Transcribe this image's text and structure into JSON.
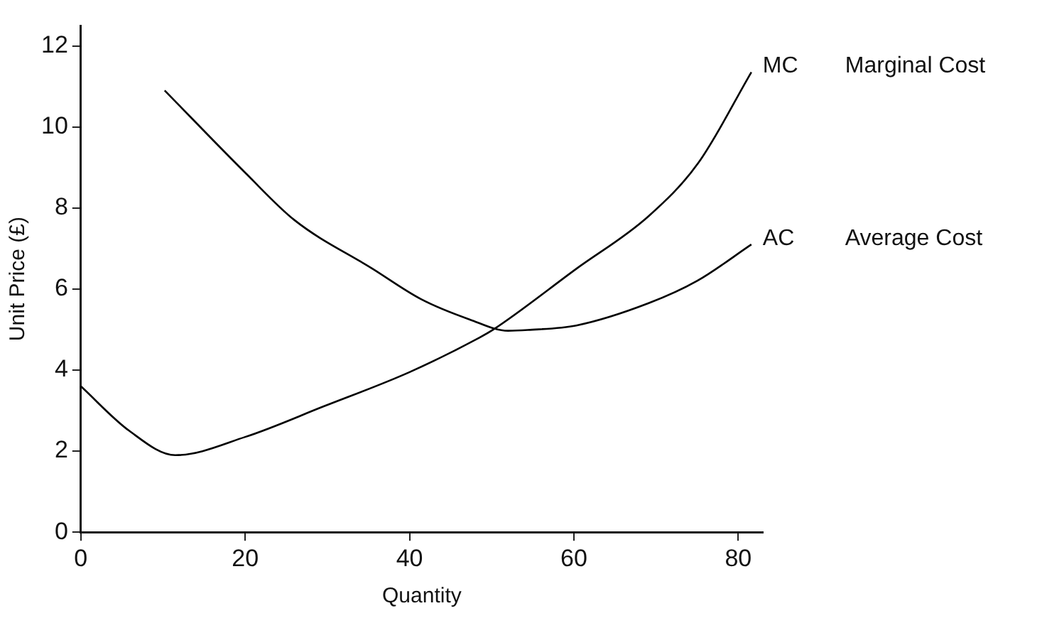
{
  "chart_data": {
    "type": "line",
    "xlabel": "Quantity",
    "ylabel": "Unit Price (£)",
    "xlim": [
      0,
      83
    ],
    "ylim": [
      0,
      12.5
    ],
    "xticks": [
      0,
      20,
      40,
      60,
      80
    ],
    "yticks": [
      0,
      2,
      4,
      6,
      8,
      10,
      12
    ],
    "series": [
      {
        "name": "MC",
        "color": "#000000",
        "x": [
          0,
          5.9,
          11.5,
          20,
          29.5,
          40,
          48.5,
          50.2,
          60.3,
          69.1,
          75.1,
          81.6
        ],
        "values": [
          3.6,
          2.5,
          1.9,
          2.35,
          3.1,
          3.95,
          4.8,
          5.0,
          6.5,
          7.8,
          9.1,
          11.35
        ]
      },
      {
        "name": "AC",
        "color": "#000000",
        "x": [
          10.2,
          20.1,
          26,
          35.5,
          41.4,
          47.3,
          52,
          54.4,
          60.3,
          69.1,
          75,
          81.6
        ],
        "values": [
          10.9,
          8.85,
          7.7,
          6.5,
          5.75,
          5.25,
          4.97,
          4.99,
          5.1,
          5.65,
          6.2,
          7.1
        ]
      }
    ],
    "annotations": [
      "Marginal Cost",
      "Average Cost"
    ],
    "grid": false,
    "legend": false,
    "marker": "none",
    "line_style": "solid"
  }
}
